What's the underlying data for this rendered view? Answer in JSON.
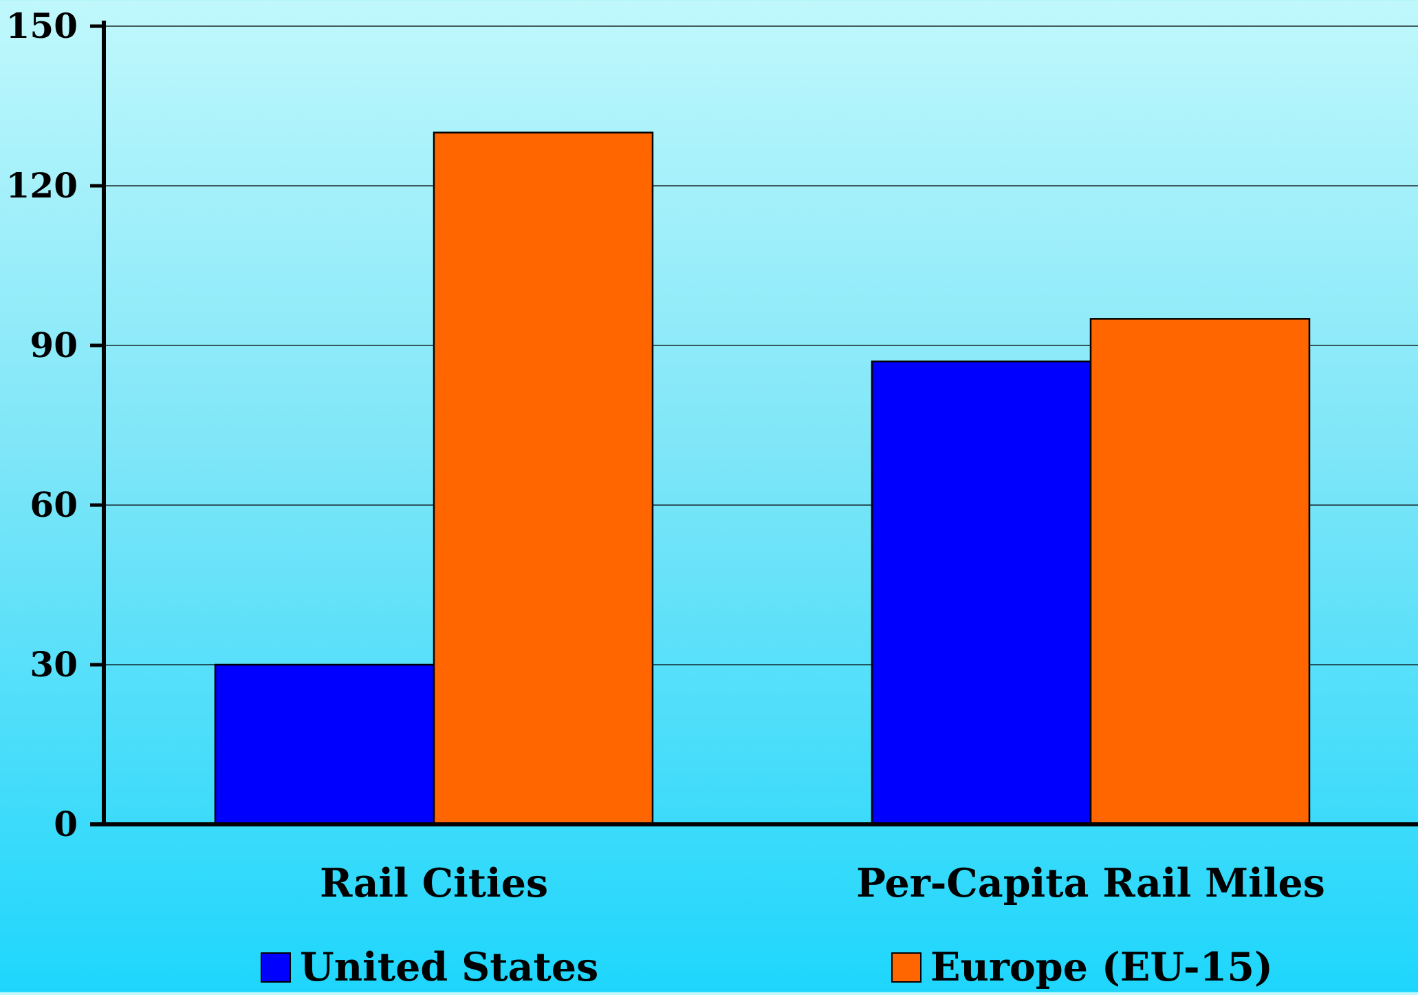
{
  "chart_data": {
    "type": "bar",
    "title": "",
    "xlabel": "",
    "ylabel": "",
    "categories": [
      "Rail Cities",
      "Per-Capita Rail Miles"
    ],
    "series": [
      {
        "name": "United States",
        "values": [
          30,
          87
        ]
      },
      {
        "name": "Europe (EU-15)",
        "values": [
          130,
          95
        ]
      }
    ],
    "ylim": [
      0,
      150
    ],
    "yticks": [
      "0",
      "30",
      "60",
      "90",
      "120",
      "150"
    ],
    "grid": true,
    "legend_position": "bottom"
  },
  "colors": {
    "series": [
      "#0000ff",
      "#ff6600"
    ],
    "gridline": "#000000",
    "axis": "#000000",
    "background_top": "#c0f8fc",
    "background_bottom": "#1ed6fc"
  }
}
